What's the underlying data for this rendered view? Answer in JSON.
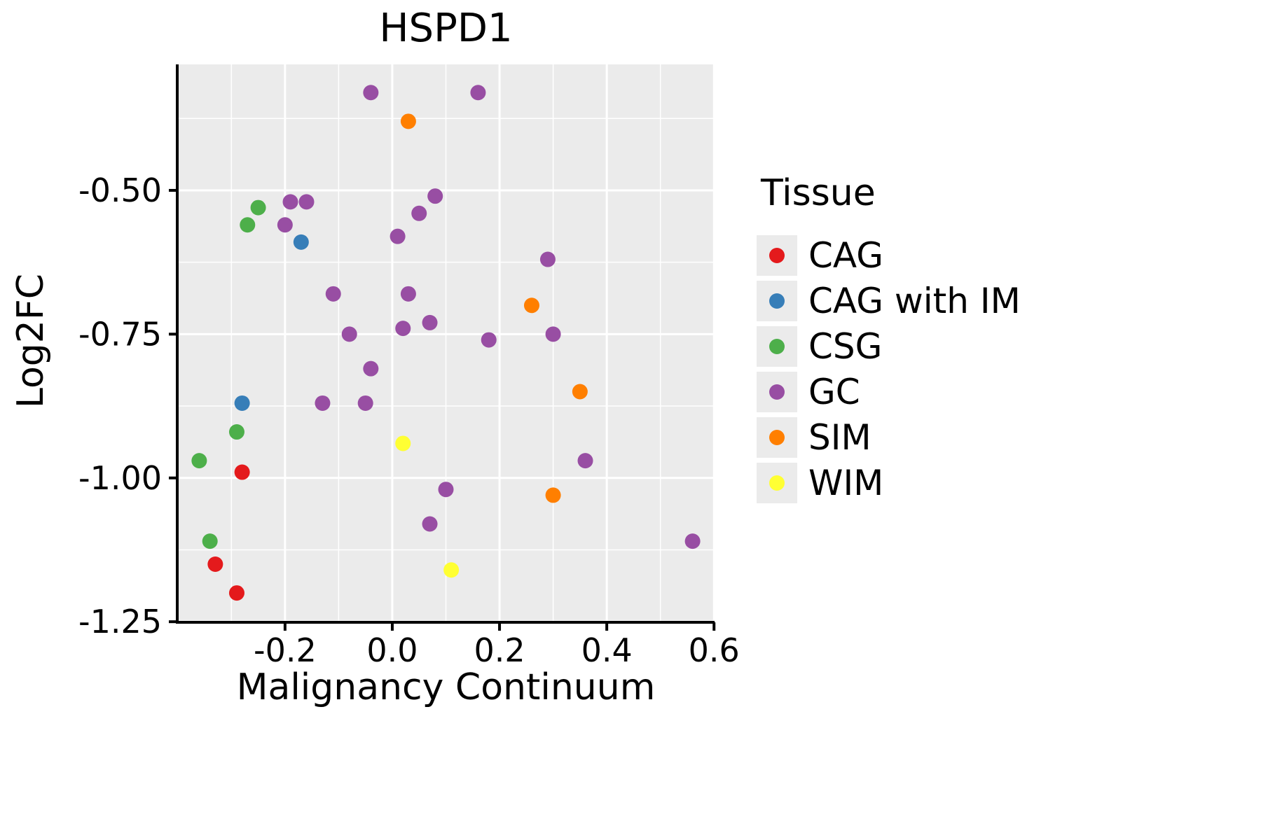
{
  "chart_data": {
    "type": "scatter",
    "title": "HSPD1",
    "xlabel": "Malignancy Continuum",
    "ylabel": "Log2FC",
    "xlim": [
      -0.401,
      0.601
    ],
    "ylim": [
      -1.251,
      -0.281
    ],
    "x_ticks": [
      -0.2,
      0.0,
      0.2,
      0.4,
      0.6
    ],
    "x_tick_labels": [
      "-0.2",
      "0.0",
      "0.2",
      "0.4",
      "0.6"
    ],
    "y_ticks": [
      -0.5,
      -0.75,
      -1.0,
      -1.25
    ],
    "y_tick_labels": [
      "-0.50",
      "-0.75",
      "-1.00",
      "-1.25"
    ],
    "x_minor_ticks": [
      -0.3,
      -0.1,
      0.1,
      0.3,
      0.5
    ],
    "y_minor_ticks": [
      -0.375,
      -0.625,
      -0.875,
      -1.125
    ],
    "grid": true,
    "panel_background": "#EBEBEB",
    "grid_color": "#FFFFFF",
    "point_radius": 11,
    "legend": {
      "title": "Tissue",
      "position": "right",
      "key_background": "#EBEBEB"
    },
    "series": [
      {
        "name": "CAG",
        "color": "#E41A1C",
        "points": [
          [
            -0.28,
            -0.99
          ],
          [
            -0.33,
            -1.15
          ],
          [
            -0.29,
            -1.2
          ]
        ]
      },
      {
        "name": "CAG with IM",
        "color": "#377EB8",
        "points": [
          [
            -0.17,
            -0.59
          ],
          [
            -0.28,
            -0.87
          ]
        ]
      },
      {
        "name": "CSG",
        "color": "#4DAF4A",
        "points": [
          [
            -0.25,
            -0.53
          ],
          [
            -0.27,
            -0.56
          ],
          [
            -0.29,
            -0.92
          ],
          [
            -0.36,
            -0.97
          ],
          [
            -0.34,
            -1.11
          ]
        ]
      },
      {
        "name": "GC",
        "color": "#984EA3",
        "points": [
          [
            -0.04,
            -0.33
          ],
          [
            0.16,
            -0.33
          ],
          [
            -0.19,
            -0.52
          ],
          [
            -0.16,
            -0.52
          ],
          [
            0.08,
            -0.51
          ],
          [
            -0.2,
            -0.56
          ],
          [
            0.05,
            -0.54
          ],
          [
            0.01,
            -0.58
          ],
          [
            0.29,
            -0.62
          ],
          [
            -0.11,
            -0.68
          ],
          [
            0.03,
            -0.68
          ],
          [
            0.02,
            -0.74
          ],
          [
            0.07,
            -0.73
          ],
          [
            -0.08,
            -0.75
          ],
          [
            0.18,
            -0.76
          ],
          [
            0.3,
            -0.75
          ],
          [
            -0.04,
            -0.81
          ],
          [
            -0.13,
            -0.87
          ],
          [
            -0.05,
            -0.87
          ],
          [
            0.36,
            -0.97
          ],
          [
            0.1,
            -1.02
          ],
          [
            0.07,
            -1.08
          ],
          [
            0.56,
            -1.11
          ]
        ]
      },
      {
        "name": "SIM",
        "color": "#FF7F00",
        "points": [
          [
            0.03,
            -0.38
          ],
          [
            0.26,
            -0.7
          ],
          [
            0.35,
            -0.85
          ],
          [
            0.3,
            -1.03
          ]
        ]
      },
      {
        "name": "WIM",
        "color": "#FFFF33",
        "points": [
          [
            0.02,
            -0.94
          ],
          [
            0.11,
            -1.16
          ]
        ]
      }
    ]
  }
}
